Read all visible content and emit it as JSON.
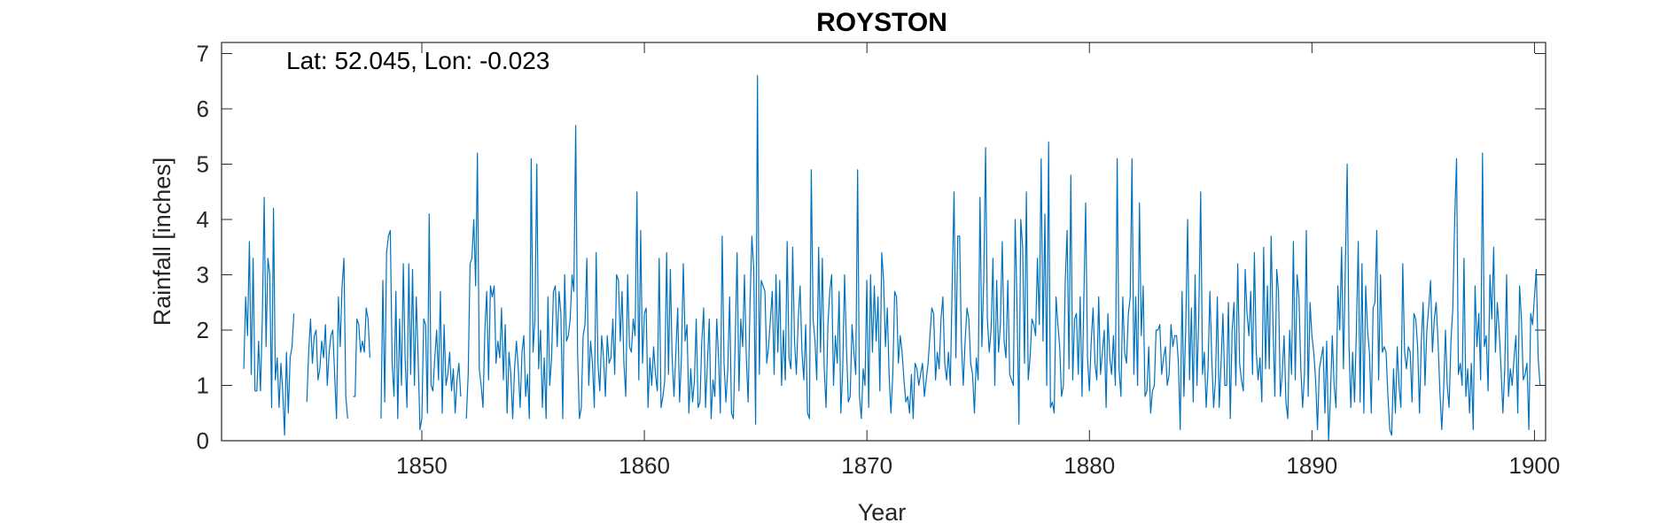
{
  "chart_data": {
    "type": "line",
    "title": "ROYSTON",
    "xlabel": "Year",
    "ylabel": "Rainfall [inches]",
    "annotation": "Lat: 52.045, Lon: -0.023",
    "xlim": [
      1841,
      1900.5
    ],
    "ylim": [
      0,
      7.2
    ],
    "xticks": [
      1850,
      1860,
      1870,
      1880,
      1890,
      1900
    ],
    "yticks": [
      0,
      1,
      2,
      3,
      4,
      5,
      6,
      7
    ],
    "grid": false,
    "series_color": "#0072bd",
    "series": [
      {
        "x_start": 1842.0,
        "x_step": 0.08333,
        "values": [
          1.3,
          2.6,
          1.9,
          3.6,
          1.2,
          3.3,
          0.9,
          0.9,
          1.8,
          0.9,
          2.2,
          4.4,
          1.7,
          3.3,
          3.0,
          0.6,
          4.2,
          1.1,
          1.5,
          0.6,
          1.4,
          0.9,
          0.1,
          1.6,
          0.5,
          1.5,
          1.7,
          2.3,
          null,
          null,
          null,
          null,
          null,
          null,
          0.7,
          1.6,
          2.2,
          1.4,
          1.9,
          2.0,
          1.1,
          1.3,
          1.8,
          1.5,
          2.1,
          1.0,
          1.6,
          1.9,
          2.0,
          1.2,
          0.4,
          2.6,
          1.7,
          2.8,
          3.3,
          0.8,
          0.4,
          null,
          null,
          0.8,
          0.8,
          2.2,
          2.1,
          1.6,
          1.8,
          1.6,
          2.4,
          2.2,
          1.5,
          null,
          null,
          null,
          null,
          null,
          0.4,
          2.9,
          0.7,
          3.4,
          3.7,
          3.8,
          1.4,
          0.8,
          2.7,
          0.4,
          2.2,
          1.0,
          3.2,
          1.5,
          0.6,
          3.2,
          1.2,
          3.1,
          1.0,
          2.6,
          1.5,
          0.2,
          0.4,
          2.2,
          2.1,
          0.5,
          4.1,
          1.0,
          0.9,
          1.5,
          2.0,
          1.1,
          2.7,
          0.5,
          2.1,
          1.0,
          1.2,
          1.6,
          0.9,
          1.3,
          0.5,
          1.1,
          1.4,
          0.8,
          null,
          null,
          0.4,
          1.2,
          3.2,
          3.3,
          4.0,
          2.8,
          5.2,
          1.3,
          1.0,
          0.6,
          2.0,
          2.7,
          1.1,
          2.8,
          2.6,
          2.8,
          1.4,
          1.8,
          1.5,
          2.4,
          1.1,
          2.1,
          0.5,
          1.6,
          1.2,
          0.4,
          1.3,
          1.8,
          1.3,
          0.6,
          1.6,
          1.9,
          0.8,
          1.2,
          0.4,
          5.1,
          1.6,
          2.2,
          5.0,
          1.3,
          2.0,
          0.6,
          1.5,
          0.4,
          2.6,
          1.0,
          1.5,
          2.7,
          2.8,
          1.7,
          2.7,
          2.3,
          0.4,
          3.0,
          1.8,
          1.9,
          2.2,
          3.0,
          2.7,
          5.7,
          1.6,
          0.4,
          0.6,
          1.9,
          2.1,
          3.3,
          1.0,
          1.8,
          1.4,
          0.6,
          3.4,
          1.4,
          0.9,
          1.9,
          1.5,
          0.8,
          1.9,
          1.4,
          1.5,
          2.2,
          1.2,
          3.0,
          2.9,
          1.8,
          2.7,
          1.4,
          0.8,
          3.0,
          1.7,
          1.6,
          2.2,
          1.9,
          4.5,
          1.1,
          3.8,
          1.4,
          2.3,
          2.4,
          0.6,
          1.5,
          1.0,
          1.7,
          1.2,
          0.9,
          3.3,
          0.6,
          0.8,
          1.1,
          3.4,
          1.2,
          3.1,
          1.5,
          0.8,
          1.6,
          2.4,
          0.7,
          1.5,
          3.2,
          1.8,
          2.1,
          0.5,
          1.3,
          0.7,
          1.1,
          2.2,
          0.6,
          0.7,
          1.8,
          2.4,
          0.6,
          1.4,
          2.2,
          0.4,
          1.1,
          0.8,
          2.2,
          1.5,
          0.5,
          3.7,
          1.4,
          0.7,
          1.3,
          2.6,
          0.5,
          0.4,
          1.8,
          3.4,
          0.9,
          2.2,
          1.7,
          3.0,
          1.5,
          0.7,
          2.5,
          3.7,
          3.1,
          0.3,
          6.6,
          1.2,
          2.9,
          2.8,
          2.7,
          1.4,
          1.7,
          2.2,
          2.7,
          1.2,
          3.0,
          1.6,
          2.9,
          1.0,
          2.0,
          1.1,
          3.6,
          1.5,
          1.3,
          3.5,
          1.8,
          1.2,
          2.2,
          2.8,
          1.6,
          1.1,
          2.1,
          0.5,
          0.4,
          4.9,
          2.2,
          1.8,
          1.1,
          3.5,
          1.6,
          3.3,
          1.3,
          0.6,
          2.1,
          2.7,
          3.0,
          1.0,
          1.9,
          1.4,
          2.7,
          0.5,
          1.3,
          3.0,
          1.7,
          0.7,
          0.8,
          2.1,
          1.6,
          1.2,
          4.9,
          0.8,
          0.4,
          1.3,
          1.0,
          2.9,
          0.6,
          3.0,
          1.6,
          2.8,
          1.8,
          2.6,
          0.9,
          3.4,
          2.9,
          1.7,
          2.4,
          1.2,
          0.5,
          1.2,
          2.7,
          2.6,
          1.4,
          1.9,
          1.6,
          1.1,
          0.7,
          0.8,
          0.5,
          1.2,
          0.4,
          1.4,
          1.3,
          1.0,
          1.2,
          1.4,
          0.8,
          1.1,
          1.4,
          1.9,
          2.4,
          2.3,
          1.1,
          1.6,
          1.3,
          2.2,
          2.6,
          1.4,
          1.1,
          1.6,
          1.0,
          2.8,
          4.5,
          1.5,
          3.7,
          3.7,
          1.8,
          1.0,
          1.8,
          2.4,
          2.2,
          1.4,
          1.2,
          0.5,
          1.5,
          1.1,
          4.4,
          1.7,
          2.9,
          5.3,
          2.2,
          1.6,
          2.0,
          3.3,
          1.0,
          2.9,
          1.6,
          2.1,
          3.6,
          1.8,
          1.5,
          2.9,
          1.2,
          1.1,
          1.0,
          4.0,
          2.4,
          0.3,
          4.0,
          3.5,
          1.4,
          4.5,
          1.1,
          1.5,
          2.2,
          2.1,
          1.9,
          3.3,
          2.1,
          5.1,
          1.8,
          4.1,
          1.0,
          5.4,
          0.6,
          0.7,
          0.5,
          2.6,
          2.1,
          1.7,
          0.8,
          1.0,
          2.9,
          3.8,
          1.3,
          4.8,
          1.1,
          2.2,
          2.3,
          1.2,
          2.6,
          0.8,
          2.5,
          4.3,
          1.5,
          0.9,
          1.8,
          2.4,
          1.4,
          1.1,
          2.6,
          1.2,
          1.6,
          2.0,
          0.6,
          2.3,
          1.5,
          1.2,
          1.9,
          1.0,
          5.1,
          1.3,
          0.8,
          2.6,
          1.6,
          1.4,
          2.3,
          2.6,
          5.1,
          1.2,
          2.6,
          1.0,
          4.3,
          1.9,
          2.8,
          0.8,
          0.9,
          1.7,
          0.5,
          0.9,
          1.0,
          2.0,
          2.0,
          2.1,
          1.2,
          1.5,
          1.7,
          1.0,
          1.2,
          2.1,
          1.7,
          1.9,
          1.9,
          1.4,
          0.2,
          2.7,
          0.8,
          2.1,
          4.0,
          1.1,
          2.4,
          0.7,
          3.0,
          1.0,
          2.3,
          4.5,
          1.2,
          1.6,
          0.6,
          1.3,
          2.7,
          1.5,
          0.6,
          1.1,
          2.6,
          0.6,
          1.4,
          2.3,
          1.0,
          1.0,
          2.5,
          0.4,
          2.0,
          2.5,
          1.0,
          3.2,
          1.4,
          1.1,
          0.9,
          3.1,
          2.3,
          1.9,
          2.7,
          1.2,
          3.4,
          1.6,
          1.1,
          1.5,
          0.7,
          3.5,
          1.3,
          2.8,
          1.3,
          3.7,
          2.1,
          0.8,
          3.1,
          2.7,
          0.8,
          1.2,
          1.9,
          0.7,
          0.4,
          2.0,
          1.2,
          3.6,
          1.1,
          3.0,
          2.6,
          1.3,
          0.6,
          1.2,
          3.8,
          0.8,
          2.5,
          1.9,
          1.6,
          1.1,
          0.2,
          1.3,
          1.5,
          1.7,
          0.5,
          1.8,
          0.0,
          0.8,
          1.9,
          1.0,
          0.6,
          2.8,
          2.0,
          3.5,
          1.3,
          3.1,
          5.0,
          1.7,
          0.6,
          1.6,
          0.7,
          2.0,
          3.6,
          0.7,
          3.2,
          0.5,
          2.8,
          2.0,
          1.6,
          0.5,
          2.4,
          2.5,
          3.8,
          1.1,
          3.0,
          1.6,
          1.7,
          1.6,
          0.8,
          0.2,
          0.1,
          1.3,
          0.5,
          1.7,
          1.0,
          0.6,
          3.2,
          1.6,
          1.3,
          1.7,
          1.6,
          0.7,
          2.3,
          2.2,
          1.7,
          0.5,
          1.8,
          2.5,
          1.0,
          2.0,
          2.4,
          2.9,
          1.6,
          2.2,
          2.5,
          1.8,
          0.9,
          0.2,
          0.9,
          2.0,
          1.0,
          0.6,
          1.8,
          2.4,
          4.0,
          5.1,
          1.2,
          1.4,
          1.0,
          3.3,
          0.8,
          1.3,
          0.5,
          1.4,
          0.2,
          2.8,
          1.7,
          2.3,
          1.1,
          5.2,
          1.7,
          1.9,
          0.9,
          3.0,
          2.2,
          3.5,
          1.6,
          2.5,
          2.0,
          1.3,
          0.5,
          1.3,
          3.0,
          0.8,
          1.3,
          1.0,
          1.5,
          1.9,
          0.5,
          2.8,
          2.2,
          1.1,
          1.2,
          1.4,
          0.2,
          2.3,
          2.1,
          2.6,
          3.1,
          1.5,
          1.0
        ]
      }
    ]
  }
}
